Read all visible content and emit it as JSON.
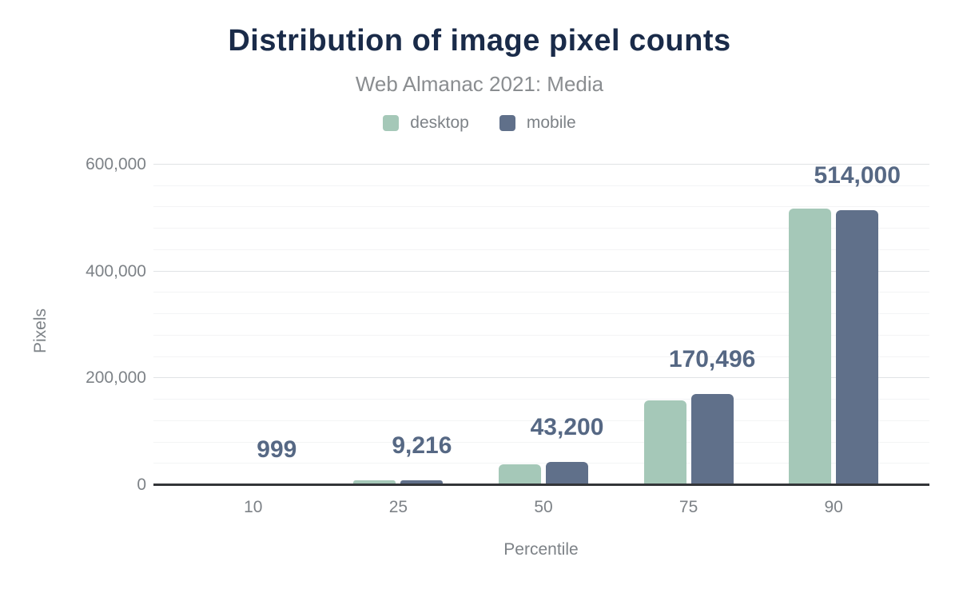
{
  "colors": {
    "title": "#1a2b49",
    "subtitle": "#8a8d90",
    "axis_text": "#7d8287",
    "value_label": "#566884",
    "baseline": "#333538",
    "grid_major": "#e0e3e5",
    "grid_minor": "#f3f4f5",
    "desktop": "#a5c8b8",
    "mobile": "#60708a"
  },
  "chart_data": {
    "type": "bar",
    "title": "Distribution of image pixel counts",
    "subtitle": "Web Almanac 2021: Media",
    "xlabel": "Percentile",
    "ylabel": "Pixels",
    "categories": [
      "10",
      "25",
      "50",
      "75",
      "90"
    ],
    "series": [
      {
        "name": "desktop",
        "color": "#a5c8b8",
        "values": [
          1000,
          8700,
          39200,
          158000,
          518000
        ],
        "values_estimated": true
      },
      {
        "name": "mobile",
        "color": "#60708a",
        "values": [
          999,
          9216,
          43200,
          170496,
          514000
        ],
        "values_estimated": false
      }
    ],
    "value_labels": [
      "999",
      "9,216",
      "43,200",
      "170,496",
      "514,000"
    ],
    "value_labels_series": "mobile",
    "ylim": [
      0,
      600000
    ],
    "y_major_ticks": [
      {
        "value": 0,
        "label": "0"
      },
      {
        "value": 200000,
        "label": "200,000"
      },
      {
        "value": 400000,
        "label": "400,000"
      },
      {
        "value": 600000,
        "label": "600,000"
      }
    ],
    "y_minor_step": 40000,
    "grid": true,
    "legend_position": "top"
  }
}
